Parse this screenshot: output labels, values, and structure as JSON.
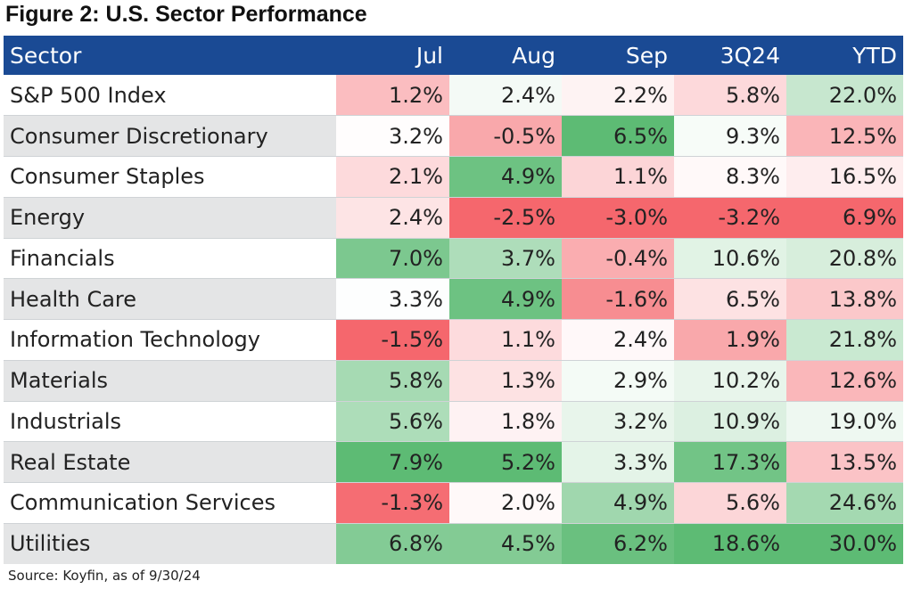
{
  "title": "Figure 2: U.S. Sector Performance",
  "source": "Source: Koyfin, as of 9/30/24",
  "chart_data": {
    "type": "table",
    "title": "Figure 2: U.S. Sector Performance",
    "columns": [
      "Sector",
      "Jul",
      "Aug",
      "Sep",
      "3Q24",
      "YTD"
    ],
    "rows": [
      {
        "sector": "S&P 500 Index",
        "values": [
          "1.2%",
          "2.4%",
          "2.2%",
          "5.8%",
          "22.0%"
        ]
      },
      {
        "sector": "Consumer Discretionary",
        "values": [
          "3.2%",
          "-0.5%",
          "6.5%",
          "9.3%",
          "12.5%"
        ]
      },
      {
        "sector": "Consumer Staples",
        "values": [
          "2.1%",
          "4.9%",
          "1.1%",
          "8.3%",
          "16.5%"
        ]
      },
      {
        "sector": "Energy",
        "values": [
          "2.4%",
          "-2.5%",
          "-3.0%",
          "-3.2%",
          "6.9%"
        ]
      },
      {
        "sector": "Financials",
        "values": [
          "7.0%",
          "3.7%",
          "-0.4%",
          "10.6%",
          "20.8%"
        ]
      },
      {
        "sector": "Health Care",
        "values": [
          "3.3%",
          "4.9%",
          "-1.6%",
          "6.5%",
          "13.8%"
        ]
      },
      {
        "sector": "Information Technology",
        "values": [
          "-1.5%",
          "1.1%",
          "2.4%",
          "1.9%",
          "21.8%"
        ]
      },
      {
        "sector": "Materials",
        "values": [
          "5.8%",
          "1.3%",
          "2.9%",
          "10.2%",
          "12.6%"
        ]
      },
      {
        "sector": "Industrials",
        "values": [
          "5.6%",
          "1.8%",
          "3.2%",
          "10.9%",
          "19.0%"
        ]
      },
      {
        "sector": "Real Estate",
        "values": [
          "7.9%",
          "5.2%",
          "3.3%",
          "17.3%",
          "13.5%"
        ]
      },
      {
        "sector": "Communication Services",
        "values": [
          "-1.3%",
          "2.0%",
          "4.9%",
          "5.6%",
          "24.6%"
        ]
      },
      {
        "sector": "Utilities",
        "values": [
          "6.8%",
          "4.5%",
          "6.2%",
          "18.6%",
          "30.0%"
        ]
      }
    ],
    "colors": {
      "header_bg": "#1a4a94",
      "green": "#5dbb74",
      "red": "#f5676d",
      "neutral": "#ffffff",
      "alt_row": "#e4e5e6"
    }
  }
}
